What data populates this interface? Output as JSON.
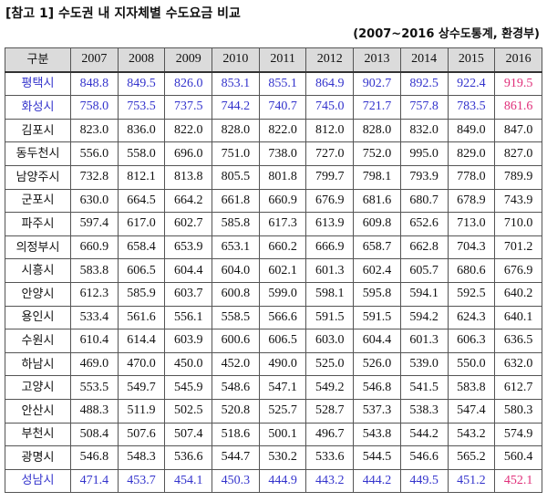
{
  "title": "[참고 1] 수도권 내 지자체별 수도요금 비교",
  "source": "(2007~2016 상수도통계, 환경부)",
  "colors": {
    "highlight_blue": "#3333cc",
    "highlight_pink": "#e0307a",
    "header_bg": "#dbdbdb"
  },
  "table": {
    "header": [
      "구분",
      "2007",
      "2008",
      "2009",
      "2010",
      "2011",
      "2012",
      "2013",
      "2014",
      "2015",
      "2016"
    ],
    "rows": [
      {
        "cells": [
          "평택시",
          "848.8",
          "849.5",
          "826.0",
          "853.1",
          "855.1",
          "864.9",
          "902.7",
          "892.5",
          "922.4",
          "919.5"
        ],
        "highlight": true
      },
      {
        "cells": [
          "화성시",
          "758.0",
          "753.5",
          "737.5",
          "744.2",
          "740.7",
          "745.0",
          "721.7",
          "757.8",
          "783.5",
          "861.6"
        ],
        "highlight": true
      },
      {
        "cells": [
          "김포시",
          "823.0",
          "836.0",
          "822.0",
          "828.0",
          "822.0",
          "812.0",
          "828.0",
          "832.0",
          "849.0",
          "847.0"
        ],
        "highlight": false
      },
      {
        "cells": [
          "동두천시",
          "556.0",
          "558.0",
          "696.0",
          "751.0",
          "738.0",
          "727.0",
          "752.0",
          "995.0",
          "829.0",
          "827.0"
        ],
        "highlight": false
      },
      {
        "cells": [
          "남양주시",
          "732.8",
          "812.1",
          "813.8",
          "805.5",
          "801.8",
          "799.7",
          "798.1",
          "793.9",
          "778.0",
          "789.9"
        ],
        "highlight": false
      },
      {
        "cells": [
          "군포시",
          "630.0",
          "664.5",
          "664.2",
          "661.8",
          "660.9",
          "676.9",
          "681.6",
          "680.7",
          "678.9",
          "743.9"
        ],
        "highlight": false
      },
      {
        "cells": [
          "파주시",
          "597.4",
          "617.0",
          "602.7",
          "585.8",
          "617.3",
          "613.9",
          "609.8",
          "652.6",
          "713.0",
          "710.0"
        ],
        "highlight": false
      },
      {
        "cells": [
          "의정부시",
          "660.9",
          "658.4",
          "653.9",
          "653.1",
          "660.2",
          "666.9",
          "658.7",
          "662.8",
          "704.3",
          "701.2"
        ],
        "highlight": false
      },
      {
        "cells": [
          "시흥시",
          "583.8",
          "606.5",
          "604.4",
          "604.0",
          "602.1",
          "601.3",
          "602.4",
          "605.7",
          "680.6",
          "676.9"
        ],
        "highlight": false
      },
      {
        "cells": [
          "안양시",
          "612.3",
          "585.9",
          "603.7",
          "600.8",
          "599.0",
          "598.1",
          "595.8",
          "594.1",
          "592.5",
          "640.2"
        ],
        "highlight": false
      },
      {
        "cells": [
          "용인시",
          "533.4",
          "561.6",
          "556.1",
          "558.5",
          "566.6",
          "591.5",
          "591.5",
          "594.2",
          "624.3",
          "640.1"
        ],
        "highlight": false
      },
      {
        "cells": [
          "수원시",
          "610.4",
          "614.4",
          "603.9",
          "600.6",
          "606.5",
          "603.0",
          "604.4",
          "601.3",
          "606.3",
          "636.5"
        ],
        "highlight": false
      },
      {
        "cells": [
          "하남시",
          "469.0",
          "470.0",
          "450.0",
          "452.0",
          "490.0",
          "525.0",
          "526.0",
          "539.0",
          "550.0",
          "632.0"
        ],
        "highlight": false
      },
      {
        "cells": [
          "고양시",
          "553.5",
          "549.7",
          "545.9",
          "548.6",
          "547.1",
          "549.2",
          "546.8",
          "541.5",
          "583.8",
          "612.7"
        ],
        "highlight": false
      },
      {
        "cells": [
          "안산시",
          "488.3",
          "511.9",
          "502.5",
          "520.8",
          "525.7",
          "528.7",
          "537.3",
          "538.3",
          "547.4",
          "580.3"
        ],
        "highlight": false
      },
      {
        "cells": [
          "부천시",
          "508.4",
          "507.6",
          "507.4",
          "518.6",
          "500.1",
          "496.7",
          "543.8",
          "544.2",
          "543.2",
          "574.9"
        ],
        "highlight": false
      },
      {
        "cells": [
          "광명시",
          "546.8",
          "548.3",
          "536.6",
          "544.7",
          "530.2",
          "533.6",
          "544.5",
          "546.6",
          "565.2",
          "560.4"
        ],
        "highlight": false
      },
      {
        "cells": [
          "성남시",
          "471.4",
          "453.7",
          "454.1",
          "450.3",
          "444.9",
          "443.2",
          "444.2",
          "449.5",
          "451.2",
          "452.1"
        ],
        "highlight": true
      }
    ]
  }
}
